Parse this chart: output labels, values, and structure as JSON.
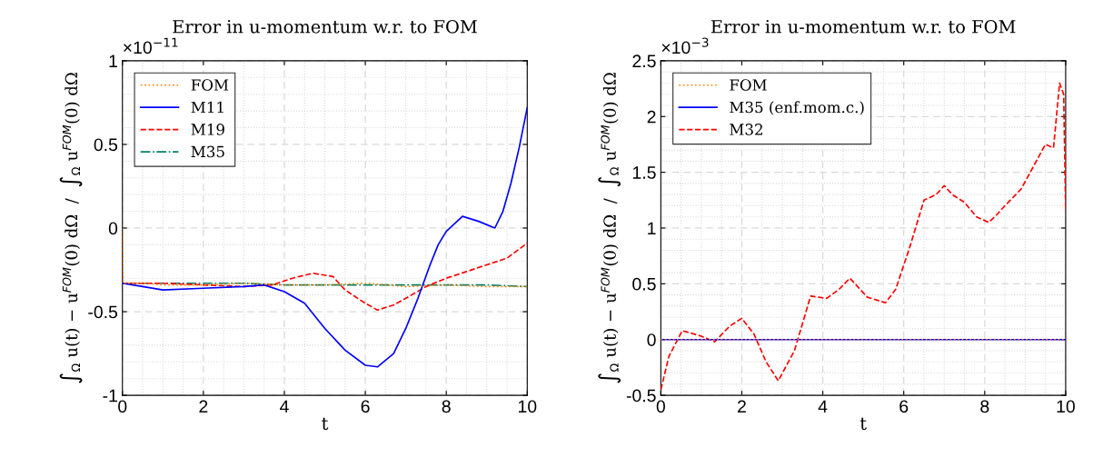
{
  "chart_data": [
    {
      "type": "line",
      "title": "Error in u-momentum w.r. to FOM",
      "xlabel": "t",
      "ylabel": "∫$_{Ω}$ u(t) − u$^{FOM}$(0) dΩ  /  ∫$_{Ω}$ u$^{FOM}$(0) dΩ",
      "annotations": [
        "×10$^{−11}$"
      ],
      "xlim": [
        0,
        10
      ],
      "xticks": [
        0,
        2,
        4,
        6,
        8,
        10
      ],
      "ylim": [
        -1,
        1
      ],
      "yticks": [
        -1,
        -0.5,
        0,
        0.5,
        1
      ],
      "grid": true,
      "legend": "top left",
      "series": [
        {
          "name": "FOM",
          "color": "#ff8000",
          "line_style": "dotted",
          "x": [
            0,
            0.02,
            0.5,
            1,
            2,
            3,
            4,
            5,
            6,
            7,
            8,
            9,
            10
          ],
          "values": [
            0,
            -0.33,
            -0.33,
            -0.34,
            -0.34,
            -0.33,
            -0.34,
            -0.34,
            -0.33,
            -0.35,
            -0.34,
            -0.35,
            -0.35
          ]
        },
        {
          "name": "M11",
          "color": "#0000ff",
          "line_style": "solid",
          "x": [
            0,
            0.5,
            1,
            2,
            3,
            3.5,
            4,
            4.5,
            5,
            5.5,
            6,
            6.3,
            6.7,
            7,
            7.3,
            7.6,
            7.8,
            8,
            8.4,
            8.8,
            9.2,
            9.4,
            9.6,
            9.8,
            10
          ],
          "values": [
            -0.33,
            -0.35,
            -0.37,
            -0.36,
            -0.35,
            -0.34,
            -0.38,
            -0.45,
            -0.6,
            -0.73,
            -0.82,
            -0.83,
            -0.75,
            -0.6,
            -0.42,
            -0.22,
            -0.1,
            -0.02,
            0.07,
            0.04,
            0.0,
            0.1,
            0.27,
            0.48,
            0.72
          ]
        },
        {
          "name": "M19",
          "color": "#ff0000",
          "line_style": "dashed",
          "x": [
            0,
            1,
            2,
            3,
            3.7,
            4.2,
            4.7,
            5.2,
            5.5,
            6,
            6.3,
            6.7,
            7,
            7.5,
            8,
            8.5,
            9,
            9.5,
            10
          ],
          "values": [
            -0.33,
            -0.33,
            -0.34,
            -0.35,
            -0.34,
            -0.3,
            -0.27,
            -0.29,
            -0.37,
            -0.45,
            -0.49,
            -0.46,
            -0.42,
            -0.35,
            -0.3,
            -0.26,
            -0.22,
            -0.18,
            -0.09
          ]
        },
        {
          "name": "M35",
          "color": "#00806a",
          "line_style": "dashdot",
          "x": [
            0,
            1,
            2,
            3,
            4,
            5,
            6,
            7,
            8,
            9,
            10
          ],
          "values": [
            -0.33,
            -0.33,
            -0.33,
            -0.33,
            -0.34,
            -0.34,
            -0.34,
            -0.34,
            -0.34,
            -0.34,
            -0.35
          ]
        }
      ]
    },
    {
      "type": "line",
      "title": "Error in u-momentum w.r. to FOM",
      "xlabel": "t",
      "ylabel": "∫$_{Ω}$ u(t) − u$^{FOM}$(0) dΩ  /  ∫$_{Ω}$ u$^{FOM}$(0) dΩ",
      "annotations": [
        "×10$^{−3}$"
      ],
      "xlim": [
        0,
        10
      ],
      "xticks": [
        0,
        2,
        4,
        6,
        8,
        10
      ],
      "ylim": [
        -0.5,
        2.5
      ],
      "yticks": [
        -0.5,
        0,
        0.5,
        1,
        1.5,
        2,
        2.5
      ],
      "grid": true,
      "legend": "top left",
      "series": [
        {
          "name": "FOM",
          "color": "#ff8000",
          "line_style": "dotted",
          "x": [
            0,
            10
          ],
          "values": [
            0,
            0
          ]
        },
        {
          "name": "M35 (enf.mom.c.)",
          "color": "#0000ff",
          "line_style": "solid",
          "x": [
            0,
            10
          ],
          "values": [
            0,
            0
          ]
        },
        {
          "name": "M32",
          "color": "#ff0000",
          "line_style": "dashed",
          "x": [
            0,
            0.2,
            0.53,
            1.0,
            1.33,
            1.7,
            2.0,
            2.3,
            2.6,
            2.9,
            3.3,
            3.7,
            4.1,
            4.4,
            4.67,
            5.1,
            5.55,
            5.8,
            6.15,
            6.5,
            6.8,
            7.0,
            7.2,
            7.5,
            7.8,
            8.1,
            8.3,
            8.5,
            8.9,
            9.2,
            9.5,
            9.7,
            9.85,
            9.95,
            10
          ],
          "values": [
            -0.45,
            -0.15,
            0.08,
            0.03,
            -0.02,
            0.12,
            0.19,
            0.05,
            -0.2,
            -0.37,
            -0.1,
            0.39,
            0.37,
            0.45,
            0.55,
            0.38,
            0.33,
            0.45,
            0.83,
            1.25,
            1.3,
            1.38,
            1.3,
            1.23,
            1.1,
            1.05,
            1.12,
            1.2,
            1.35,
            1.55,
            1.75,
            1.72,
            2.3,
            2.2,
            1.15
          ]
        }
      ]
    }
  ]
}
